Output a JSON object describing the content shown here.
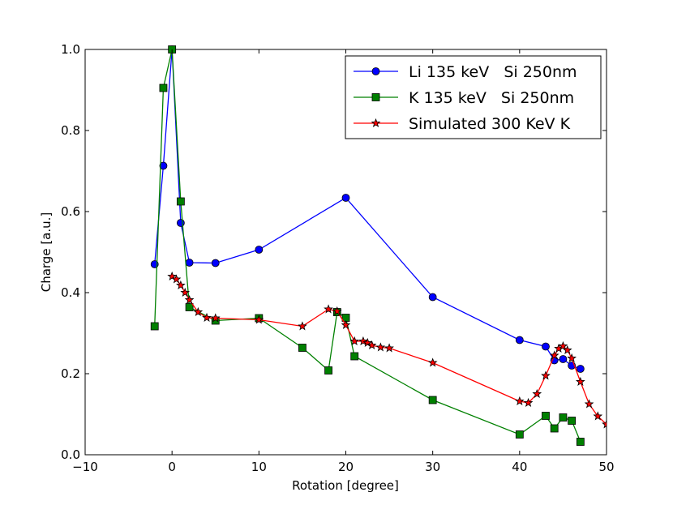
{
  "chart_data": {
    "type": "line",
    "title": "",
    "xlabel": "Rotation [degree]",
    "ylabel": "Charge [a.u.]",
    "xlim": [
      -10,
      50
    ],
    "ylim": [
      0.0,
      1.0
    ],
    "xticks": [
      -10,
      0,
      10,
      20,
      30,
      40,
      50
    ],
    "xtick_labels": [
      "−10",
      "0",
      "10",
      "20",
      "30",
      "40",
      "50"
    ],
    "yticks": [
      0.0,
      0.2,
      0.4,
      0.6,
      0.8,
      1.0
    ],
    "ytick_labels": [
      "0.0",
      "0.2",
      "0.4",
      "0.6",
      "0.8",
      "1.0"
    ],
    "grid": false,
    "legend_position": "top-right",
    "series": [
      {
        "name": "Li 135 keV   Si 250nm",
        "color": "#0000ff",
        "marker": "circle",
        "x": [
          -2,
          -1,
          0,
          1,
          2,
          5,
          10,
          20,
          30,
          40,
          43,
          44,
          45,
          46,
          47
        ],
        "y": [
          0.47,
          0.713,
          1.0,
          0.572,
          0.474,
          0.473,
          0.506,
          0.634,
          0.389,
          0.283,
          0.267,
          0.233,
          0.236,
          0.22,
          0.212
        ]
      },
      {
        "name": "K 135 keV   Si 250nm",
        "color": "#008000",
        "marker": "square",
        "x": [
          -2,
          -1,
          0,
          1,
          2,
          5,
          10,
          15,
          18,
          19,
          20,
          21,
          30,
          40,
          43,
          44,
          45,
          46,
          47
        ],
        "y": [
          0.317,
          0.905,
          1.0,
          0.625,
          0.364,
          0.331,
          0.337,
          0.264,
          0.208,
          0.352,
          0.338,
          0.243,
          0.135,
          0.05,
          0.096,
          0.065,
          0.092,
          0.084,
          0.032
        ]
      },
      {
        "name": "Simulated 300 KeV K",
        "color": "#ff0000",
        "marker": "star",
        "x": [
          0,
          0.5,
          1,
          1.5,
          2,
          3,
          4,
          5,
          10,
          15,
          18,
          19,
          20,
          21,
          22,
          22.5,
          23,
          24,
          25,
          30,
          40,
          41,
          42,
          43,
          44,
          44.5,
          45,
          45.5,
          46,
          47,
          48,
          49,
          50
        ],
        "y": [
          0.44,
          0.433,
          0.418,
          0.4,
          0.382,
          0.352,
          0.338,
          0.337,
          0.333,
          0.317,
          0.359,
          0.354,
          0.32,
          0.28,
          0.28,
          0.276,
          0.27,
          0.265,
          0.263,
          0.227,
          0.132,
          0.128,
          0.15,
          0.195,
          0.245,
          0.262,
          0.268,
          0.258,
          0.238,
          0.18,
          0.125,
          0.095,
          0.075
        ]
      }
    ]
  }
}
